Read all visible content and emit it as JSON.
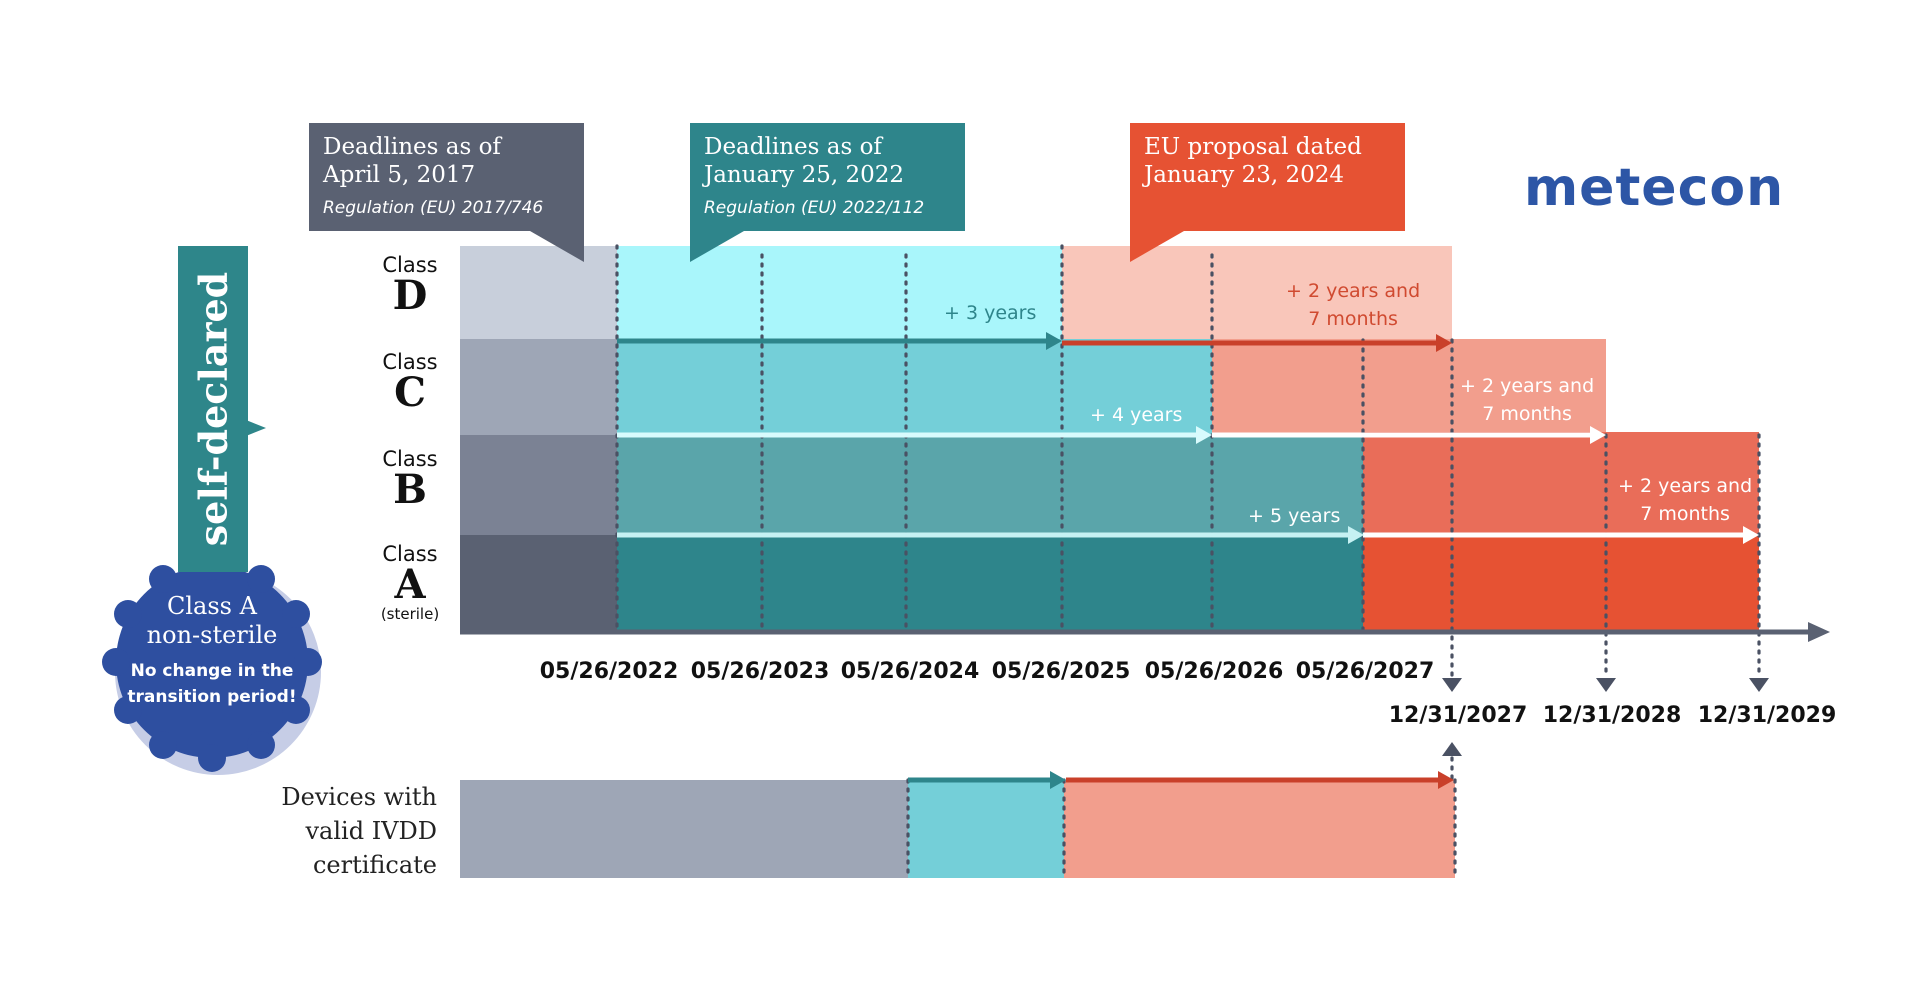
{
  "callouts": {
    "c2017": {
      "line1": "Deadlines as of",
      "line2": "April 5, 2017",
      "regulation": "Regulation (EU) 2017/746"
    },
    "c2022": {
      "line1": "Deadlines as of",
      "line2": "January 25, 2022",
      "regulation": "Regulation (EU) 2022/112"
    },
    "c2024": {
      "line1": "EU proposal dated",
      "line2": "January 23, 2024"
    }
  },
  "logo": "metecon",
  "self_declared": "self-declared",
  "badge": {
    "line1": "Class A",
    "line2": "non-sterile",
    "line3": "No change in the",
    "line4": "transition period!"
  },
  "classes": [
    {
      "word": "Class",
      "letter": "D",
      "note": ""
    },
    {
      "word": "Class",
      "letter": "C",
      "note": ""
    },
    {
      "word": "Class",
      "letter": "B",
      "note": ""
    },
    {
      "word": "Class",
      "letter": "A",
      "note": "(sterile)"
    }
  ],
  "durations": {
    "d_2022": "+ 3 years",
    "c_2022": "+ 4 years",
    "b_2022": "+ 5 years",
    "d_2024_1": "+ 2 years and",
    "d_2024_2": "7 months",
    "c_2024_1": "+ 2 years and",
    "c_2024_2": "7 months",
    "b_2024_1": "+ 2 years and",
    "b_2024_2": "7 months"
  },
  "dates_top": [
    "05/26/2022",
    "05/26/2023",
    "05/26/2024",
    "05/26/2025",
    "05/26/2026",
    "05/26/2027"
  ],
  "dates_bottom": [
    "12/31/2027",
    "12/31/2028",
    "12/31/2029"
  ],
  "devices": {
    "line1": "Devices with",
    "line2": "valid IVDD",
    "line3": "certificate"
  },
  "colors": {
    "slate": "#5a6172",
    "teal_dark": "#2e858b",
    "teal_mid": "#5aa5aa",
    "teal_light": "#74cfd8",
    "cyan_pale": "#a9f6fb",
    "red": "#e65233",
    "salmon": "#f29e8d",
    "peach": "#f9c6ba",
    "navy": "#2e4fa0"
  }
}
